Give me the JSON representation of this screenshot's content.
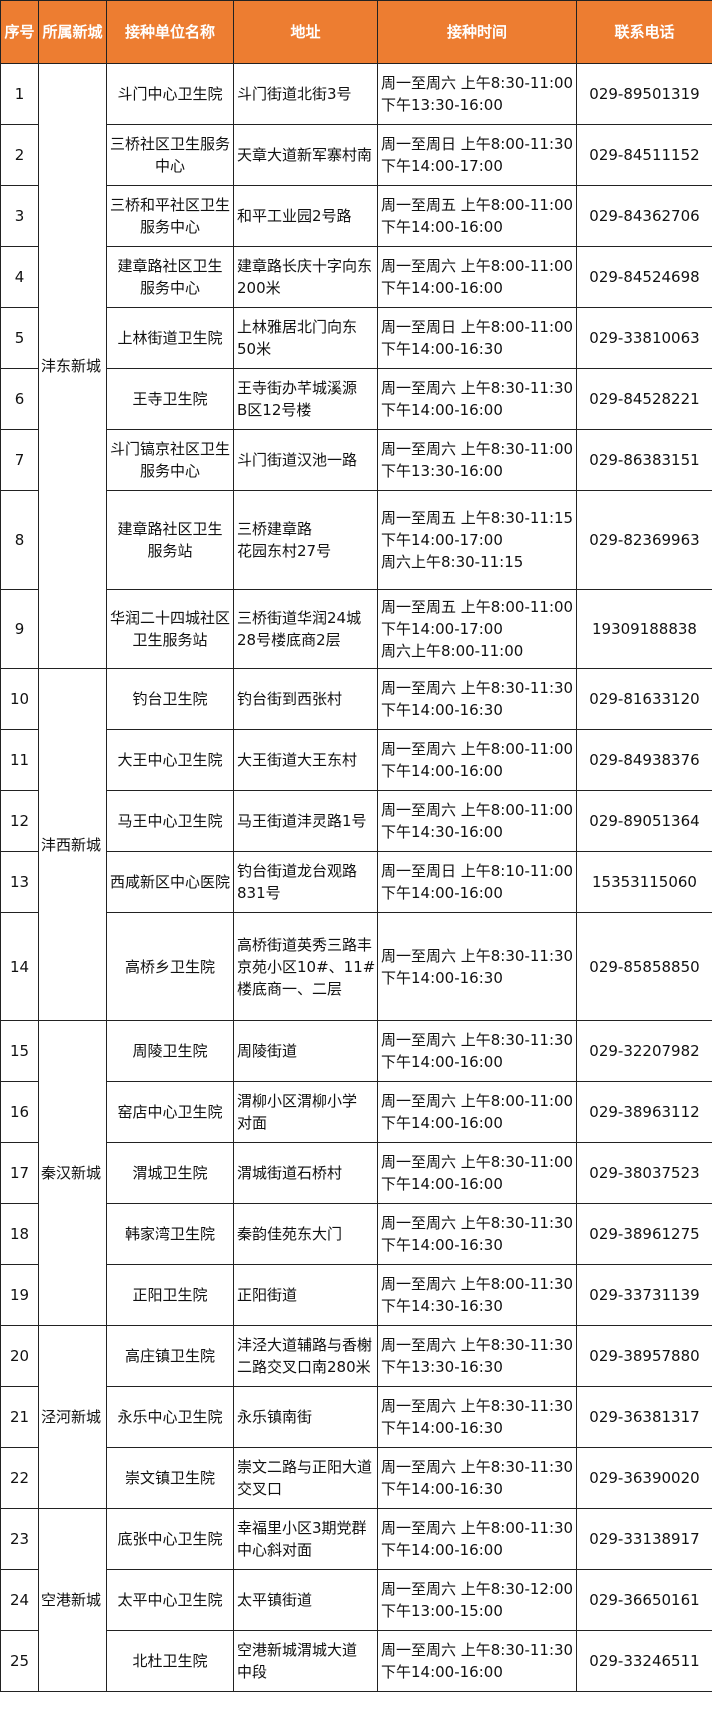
{
  "header_color": "#ED7D31",
  "headers": [
    "序号",
    "所属新城",
    "接种单位名称",
    "地址",
    "接种时间",
    "联系电话"
  ],
  "districts": [
    {
      "name": "沣东新城",
      "rows": 9
    },
    {
      "name": "沣西新城",
      "rows": 5
    },
    {
      "name": "秦汉新城",
      "rows": 5
    },
    {
      "name": "泾河新城",
      "rows": 3
    },
    {
      "name": "空港新城",
      "rows": 3
    }
  ],
  "rows": [
    {
      "no": "1",
      "unit": [
        "斗门中心卫生院"
      ],
      "address": [
        "斗门街道北街3号"
      ],
      "time": [
        "周一至周六 上午8:30-11:00",
        "下午13:30-16:00"
      ],
      "phone": "029-89501319"
    },
    {
      "no": "2",
      "unit": [
        "三桥社区卫生服务",
        "中心"
      ],
      "address": [
        "天章大道新军寨村南"
      ],
      "time": [
        "周一至周日 上午8:00-11:30",
        "下午14:00-17:00"
      ],
      "phone": "029-84511152"
    },
    {
      "no": "3",
      "unit": [
        "三桥和平社区卫生",
        "服务中心"
      ],
      "address": [
        "和平工业园2号路"
      ],
      "time": [
        "周一至周五 上午8:00-11:00",
        "下午14:00-16:00"
      ],
      "phone": "029-84362706"
    },
    {
      "no": "4",
      "unit": [
        "建章路社区卫生",
        "服务中心"
      ],
      "address": [
        "建章路长庆十字向东",
        "200米"
      ],
      "time": [
        "周一至周六 上午8:00-11:00",
        "下午14:00-16:00"
      ],
      "phone": "029-84524698"
    },
    {
      "no": "5",
      "unit": [
        "上林街道卫生院"
      ],
      "address": [
        "上林雅居北门向东",
        "50米"
      ],
      "time": [
        "周一至周日 上午8:00-11:00",
        "下午14:00-16:30"
      ],
      "phone": "029-33810063"
    },
    {
      "no": "6",
      "unit": [
        "王寺卫生院"
      ],
      "address": [
        "王寺街办芊城溪源",
        "B区12号楼"
      ],
      "time": [
        "周一至周六 上午8:30-11:30",
        "下午14:00-16:00"
      ],
      "phone": "029-84528221"
    },
    {
      "no": "7",
      "unit": [
        "斗门镐京社区卫生",
        "服务中心"
      ],
      "address": [
        "斗门街道汉池一路"
      ],
      "time": [
        "周一至周六 上午8:30-11:00",
        "下午13:30-16:00"
      ],
      "phone": "029-86383151"
    },
    {
      "no": "8",
      "unit": [
        "建章路社区卫生",
        "服务站"
      ],
      "address": [
        "三桥建章路",
        "花园东村27号"
      ],
      "time": [
        "周一至周五 上午8:30-11:15",
        "下午14:00-17:00",
        "周六上午8:30-11:15"
      ],
      "phone": "029-82369963"
    },
    {
      "no": "9",
      "unit": [
        "华润二十四城社区",
        "卫生服务站"
      ],
      "address": [
        "三桥街道华润24城",
        "28号楼底商2层"
      ],
      "time": [
        "周一至周五 上午8:00-11:00",
        "下午14:00-17:00",
        "周六上午8:00-11:00"
      ],
      "phone": "19309188838"
    },
    {
      "no": "10",
      "unit": [
        "钓台卫生院"
      ],
      "address": [
        "钓台街到西张村"
      ],
      "time": [
        "周一至周六 上午8:30-11:30",
        "下午14:00-16:30"
      ],
      "phone": "029-81633120"
    },
    {
      "no": "11",
      "unit": [
        "大王中心卫生院"
      ],
      "address": [
        "大王街道大王东村"
      ],
      "time": [
        "周一至周六 上午8:00-11:00",
        "下午14:00-16:00"
      ],
      "phone": "029-84938376"
    },
    {
      "no": "12",
      "unit": [
        "马王中心卫生院"
      ],
      "address": [
        "马王街道沣灵路1号"
      ],
      "time": [
        "周一至周六 上午8:00-11:00",
        "下午14:30-16:00"
      ],
      "phone": "029-89051364"
    },
    {
      "no": "13",
      "unit": [
        "西咸新区中心医院"
      ],
      "address": [
        "钓台街道龙台观路",
        "831号"
      ],
      "time": [
        "周一至周日 上午8:10-11:00",
        "下午14:00-16:00"
      ],
      "phone": "15353115060"
    },
    {
      "no": "14",
      "unit": [
        "高桥乡卫生院"
      ],
      "address": [
        "高桥街道英秀三路丰",
        "京苑小区10#、11#",
        "楼底商一、二层"
      ],
      "time": [
        "周一至周六 上午8:30-11:30",
        "下午14:00-16:30"
      ],
      "phone": "029-85858850"
    },
    {
      "no": "15",
      "unit": [
        "周陵卫生院"
      ],
      "address": [
        "周陵街道"
      ],
      "time": [
        "周一至周六 上午8:30-11:30",
        "下午14:00-16:00"
      ],
      "phone": "029-32207982"
    },
    {
      "no": "16",
      "unit": [
        "窑店中心卫生院"
      ],
      "address": [
        "渭柳小区渭柳小学",
        "对面"
      ],
      "time": [
        "周一至周六 上午8:00-11:00",
        "下午14:00-16:00"
      ],
      "phone": "029-38963112"
    },
    {
      "no": "17",
      "unit": [
        "渭城卫生院"
      ],
      "address": [
        "渭城街道石桥村"
      ],
      "time": [
        "周一至周六 上午8:30-11:00",
        "下午14:00-16:00"
      ],
      "phone": "029-38037523"
    },
    {
      "no": "18",
      "unit": [
        "韩家湾卫生院"
      ],
      "address": [
        "秦韵佳苑东大门"
      ],
      "time": [
        "周一至周六 上午8:30-11:30",
        "下午14:00-16:30"
      ],
      "phone": "029-38961275"
    },
    {
      "no": "19",
      "unit": [
        "正阳卫生院"
      ],
      "address": [
        "正阳街道"
      ],
      "time": [
        "周一至周六 上午8:00-11:30",
        "下午14:30-16:30"
      ],
      "phone": "029-33731139"
    },
    {
      "no": "20",
      "unit": [
        "高庄镇卫生院"
      ],
      "address": [
        "沣泾大道辅路与香榭",
        "二路交叉口南280米"
      ],
      "time": [
        "周一至周六 上午8:30-11:30",
        "下午13:30-16:30"
      ],
      "phone": "029-38957880"
    },
    {
      "no": "21",
      "unit": [
        "永乐中心卫生院"
      ],
      "address": [
        "永乐镇南街"
      ],
      "time": [
        "周一至周六 上午8:30-11:30",
        "下午14:00-16:30"
      ],
      "phone": "029-36381317"
    },
    {
      "no": "22",
      "unit": [
        "崇文镇卫生院"
      ],
      "address": [
        "崇文二路与正阳大道",
        "交叉口"
      ],
      "time": [
        "周一至周六 上午8:30-11:30",
        "下午14:00-16:30"
      ],
      "phone": "029-36390020"
    },
    {
      "no": "23",
      "unit": [
        "底张中心卫生院"
      ],
      "address": [
        "幸福里小区3期党群",
        "中心斜对面"
      ],
      "time": [
        "周一至周六 上午8:00-11:30",
        "下午14:00-16:00"
      ],
      "phone": "029-33138917"
    },
    {
      "no": "24",
      "unit": [
        "太平中心卫生院"
      ],
      "address": [
        "太平镇街道"
      ],
      "time": [
        "周一至周六 上午8:30-12:00",
        "下午13:00-15:00"
      ],
      "phone": "029-36650161"
    },
    {
      "no": "25",
      "unit": [
        "北杜卫生院"
      ],
      "address": [
        "空港新城渭城大道",
        "中段"
      ],
      "time": [
        "周一至周六 上午8:30-11:30",
        "下午14:00-16:00"
      ],
      "phone": "029-33246511"
    }
  ]
}
